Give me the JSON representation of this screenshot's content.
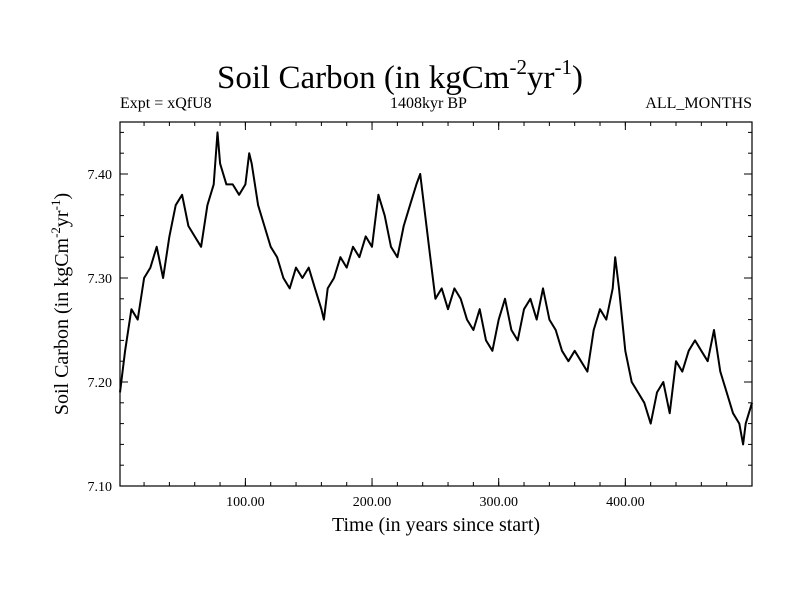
{
  "chart_data": {
    "type": "line",
    "title": "Soil Carbon (in kgCm",
    "title_sup1": "-2",
    "title_mid": "yr",
    "title_sup2": "-1",
    "title_end": ")",
    "expt_label": "Expt = xQfU8",
    "period_label": "1408kyr BP",
    "months_label": "ALL_MONTHS",
    "xlabel": "Time (in years since start)",
    "ylabel": "Soil Carbon (in kgCm",
    "ylabel_sup1": "-2",
    "ylabel_mid": "yr",
    "ylabel_sup2": "-1",
    "ylabel_end": ")",
    "xlim": [
      1,
      500
    ],
    "ylim": [
      7.1,
      7.45
    ],
    "x_ticks": [
      100,
      200,
      300,
      400
    ],
    "x_tick_labels": [
      "100.00",
      "200.00",
      "300.00",
      "400.00"
    ],
    "y_ticks": [
      7.1,
      7.2,
      7.3,
      7.4
    ],
    "y_tick_labels": [
      "7.10",
      "7.20",
      "7.30",
      "7.40"
    ],
    "series": [
      {
        "name": "Soil Carbon",
        "x": [
          1,
          5,
          10,
          15,
          20,
          25,
          30,
          35,
          40,
          45,
          50,
          55,
          60,
          65,
          70,
          75,
          78,
          80,
          85,
          90,
          95,
          100,
          103,
          105,
          110,
          115,
          120,
          125,
          130,
          135,
          140,
          145,
          150,
          155,
          160,
          162,
          165,
          170,
          175,
          180,
          185,
          190,
          195,
          200,
          205,
          210,
          215,
          220,
          225,
          230,
          235,
          238,
          240,
          245,
          250,
          255,
          260,
          265,
          270,
          275,
          280,
          285,
          290,
          295,
          300,
          305,
          310,
          315,
          320,
          325,
          330,
          335,
          340,
          345,
          350,
          355,
          360,
          365,
          370,
          375,
          380,
          385,
          390,
          392,
          395,
          400,
          405,
          410,
          415,
          420,
          425,
          430,
          435,
          440,
          445,
          450,
          455,
          460,
          465,
          470,
          475,
          480,
          485,
          490,
          493,
          495,
          500
        ],
        "y": [
          7.19,
          7.23,
          7.27,
          7.26,
          7.3,
          7.31,
          7.33,
          7.3,
          7.34,
          7.37,
          7.38,
          7.35,
          7.34,
          7.33,
          7.37,
          7.39,
          7.44,
          7.41,
          7.39,
          7.39,
          7.38,
          7.39,
          7.42,
          7.41,
          7.37,
          7.35,
          7.33,
          7.32,
          7.3,
          7.29,
          7.31,
          7.3,
          7.31,
          7.29,
          7.27,
          7.26,
          7.29,
          7.3,
          7.32,
          7.31,
          7.33,
          7.32,
          7.34,
          7.33,
          7.38,
          7.36,
          7.33,
          7.32,
          7.35,
          7.37,
          7.39,
          7.4,
          7.38,
          7.33,
          7.28,
          7.29,
          7.27,
          7.29,
          7.28,
          7.26,
          7.25,
          7.27,
          7.24,
          7.23,
          7.26,
          7.28,
          7.25,
          7.24,
          7.27,
          7.28,
          7.26,
          7.29,
          7.26,
          7.25,
          7.23,
          7.22,
          7.23,
          7.22,
          7.21,
          7.25,
          7.27,
          7.26,
          7.29,
          7.32,
          7.29,
          7.23,
          7.2,
          7.19,
          7.18,
          7.16,
          7.19,
          7.2,
          7.17,
          7.22,
          7.21,
          7.23,
          7.24,
          7.23,
          7.22,
          7.25,
          7.21,
          7.19,
          7.17,
          7.16,
          7.14,
          7.16,
          7.18
        ]
      }
    ]
  }
}
